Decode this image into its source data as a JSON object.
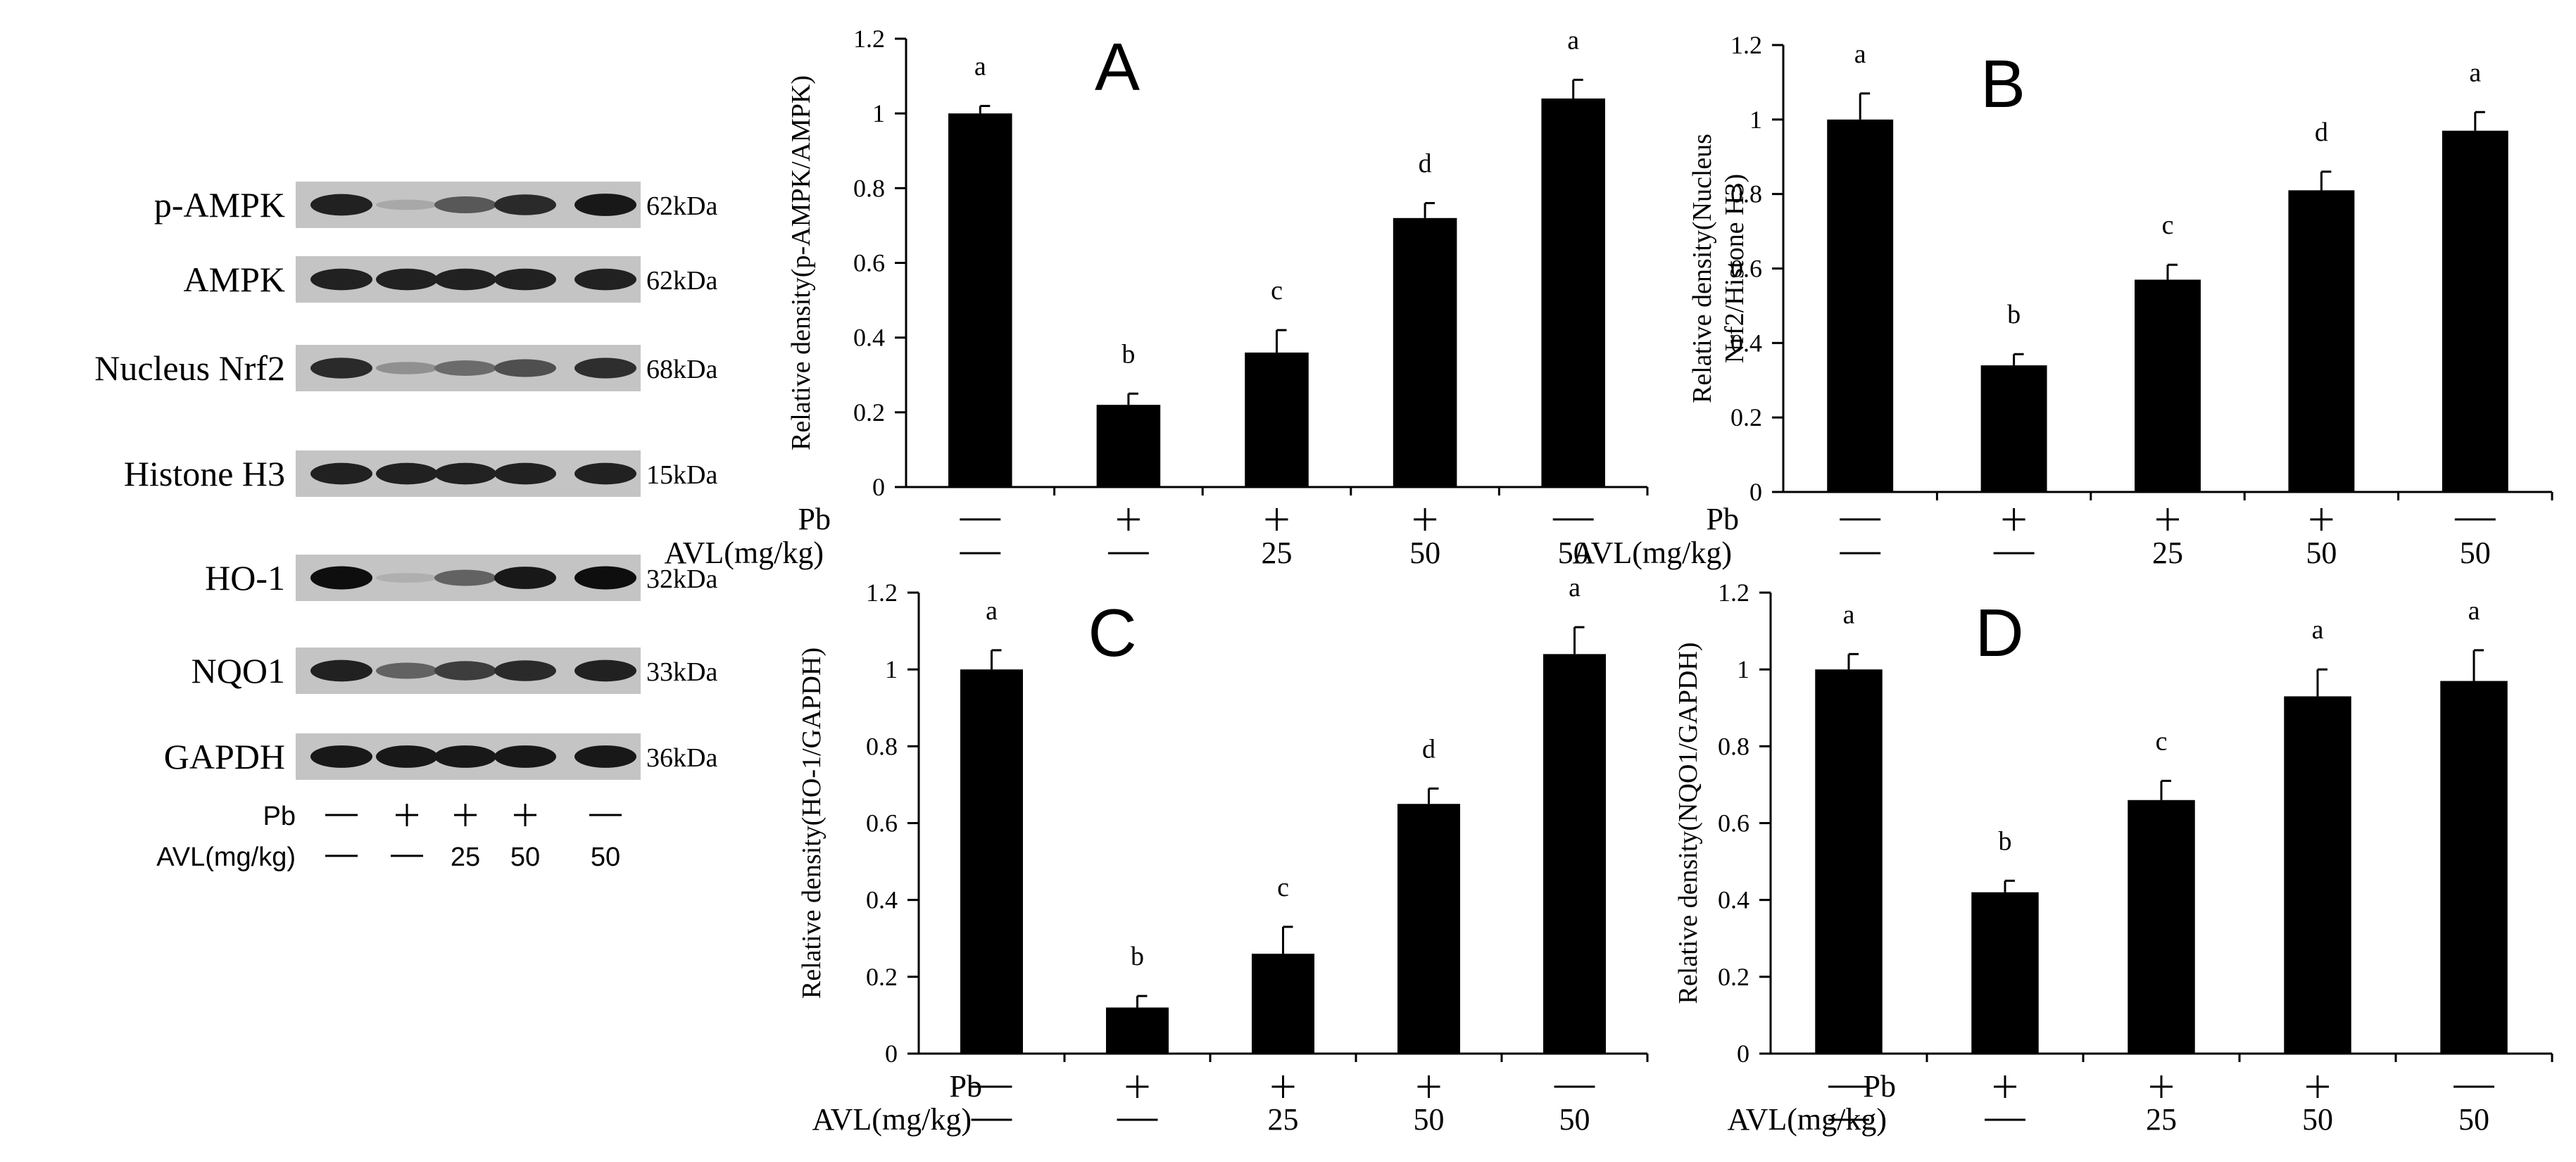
{
  "western_blot": {
    "bands": [
      {
        "label": "p-AMPK",
        "kda": "62kDa",
        "intensity": [
          0.85,
          0.12,
          0.55,
          0.8,
          0.9
        ]
      },
      {
        "label": "AMPK",
        "kda": "62kDa",
        "intensity": [
          0.85,
          0.85,
          0.85,
          0.85,
          0.85
        ]
      },
      {
        "label": "Nucleus Nrf2",
        "kda": "68kDa",
        "intensity": [
          0.8,
          0.25,
          0.45,
          0.6,
          0.78
        ]
      },
      {
        "label": "Histone H3",
        "kda": "15kDa",
        "intensity": [
          0.85,
          0.85,
          0.85,
          0.85,
          0.85
        ]
      },
      {
        "label": "HO-1",
        "kda": "32kDa",
        "intensity": [
          0.95,
          0.08,
          0.5,
          0.9,
          0.95
        ]
      },
      {
        "label": "NQO1",
        "kda": "33kDa",
        "intensity": [
          0.85,
          0.5,
          0.7,
          0.8,
          0.85
        ]
      },
      {
        "label": "GAPDH",
        "kda": "36kDa",
        "intensity": [
          0.9,
          0.9,
          0.9,
          0.9,
          0.9
        ]
      }
    ],
    "pb_label": "Pb",
    "avl_label": "AVL(mg/kg)",
    "pb_values": [
      "—",
      "+",
      "+",
      "+",
      "—"
    ],
    "avl_values": [
      "—",
      "—",
      "25",
      "50",
      "50"
    ]
  },
  "chart_data": [
    {
      "type": "bar",
      "panel": "A",
      "ylabel": "Relative density(p-AMPK/AMPK)",
      "ylim": [
        0,
        1.2
      ],
      "yticks": [
        "0",
        "0.2",
        "0.4",
        "0.6",
        "0.8",
        "1",
        "1.2"
      ],
      "values": [
        1.0,
        0.22,
        0.36,
        0.72,
        1.04
      ],
      "errors": [
        0.02,
        0.03,
        0.06,
        0.04,
        0.05
      ],
      "letters": [
        "a",
        "b",
        "c",
        "d",
        "a"
      ],
      "pb_label": "Pb",
      "avl_label": "AVL(mg/kg)",
      "pb_values": [
        "—",
        "+",
        "+",
        "+",
        "—"
      ],
      "avl_values": [
        "—",
        "—",
        "25",
        "50",
        "50"
      ]
    },
    {
      "type": "bar",
      "panel": "B",
      "ylabel": "Relative density(Nucleus Nrf2/Histone H3)",
      "ylabel_lines": [
        "Relative density(Nucleus",
        "Nrf2/Histone H3)"
      ],
      "ylim": [
        0,
        1.2
      ],
      "yticks": [
        "0",
        "0.2",
        "0.4",
        "0.6",
        "0.8",
        "1",
        "1.2"
      ],
      "values": [
        1.0,
        0.34,
        0.57,
        0.81,
        0.97
      ],
      "errors": [
        0.07,
        0.03,
        0.04,
        0.05,
        0.05
      ],
      "letters": [
        "a",
        "b",
        "c",
        "d",
        "a"
      ],
      "pb_label": "Pb",
      "avl_label": "AVL(mg/kg)",
      "pb_values": [
        "—",
        "+",
        "+",
        "+",
        "—"
      ],
      "avl_values": [
        "—",
        "—",
        "25",
        "50",
        "50"
      ]
    },
    {
      "type": "bar",
      "panel": "C",
      "ylabel": "Relative density(HO-1/GAPDH)",
      "ylim": [
        0,
        1.2
      ],
      "yticks": [
        "0",
        "0.2",
        "0.4",
        "0.6",
        "0.8",
        "1",
        "1.2"
      ],
      "values": [
        1.0,
        0.12,
        0.26,
        0.65,
        1.04
      ],
      "errors": [
        0.05,
        0.03,
        0.07,
        0.04,
        0.07
      ],
      "letters": [
        "a",
        "b",
        "c",
        "d",
        "a"
      ],
      "pb_label": "Pb",
      "avl_label": "AVL(mg/kg)",
      "pb_values": [
        "—",
        "+",
        "+",
        "+",
        "—"
      ],
      "avl_values": [
        "—",
        "—",
        "25",
        "50",
        "50"
      ]
    },
    {
      "type": "bar",
      "panel": "D",
      "ylabel": "Relative density(NQO1/GAPDH)",
      "ylim": [
        0,
        1.2
      ],
      "yticks": [
        "0",
        "0.2",
        "0.4",
        "0.6",
        "0.8",
        "1",
        "1.2"
      ],
      "values": [
        1.0,
        0.42,
        0.66,
        0.93,
        0.97
      ],
      "errors": [
        0.04,
        0.03,
        0.05,
        0.07,
        0.08
      ],
      "letters": [
        "a",
        "b",
        "c",
        "a",
        "a"
      ],
      "pb_label": "Pb",
      "avl_label": "AVL(mg/kg)",
      "pb_values": [
        "—",
        "+",
        "+",
        "+",
        "—"
      ],
      "avl_values": [
        "—",
        "—",
        "25",
        "50",
        "50"
      ]
    }
  ]
}
